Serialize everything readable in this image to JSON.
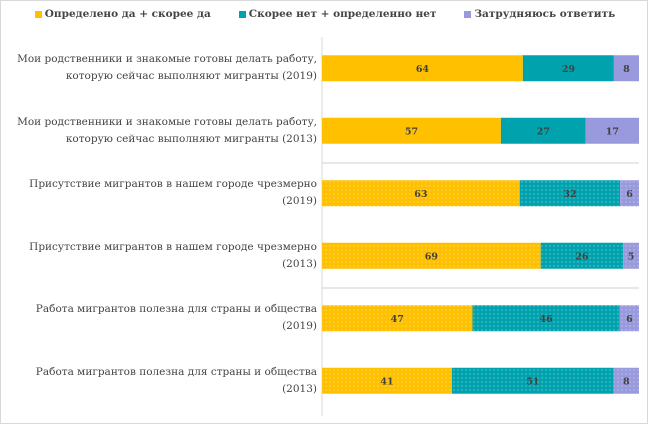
{
  "chart_data": {
    "type": "bar",
    "orientation": "horizontal",
    "stacked": true,
    "categories": [
      "Мои родственники и знакомые готовы делать работу, которую сейчас выполняют мигранты (2019)",
      "Мои родственники и знакомые готовы делать работу, которую сейчас выполняют мигранты (2013)",
      "Присутствие мигрантов в нашем городе чрезмерно (2019)",
      "Присутствие мигрантов в нашем городе чрезмерно (2013)",
      "Работа мигрантов полезна для страны и общества (2019)",
      "Работа мигрантов полезна для страны и общества (2013)"
    ],
    "series": [
      {
        "name": "Определено да + скорее да",
        "color": "#ffc000",
        "values": [
          64,
          57,
          63,
          69,
          47,
          41
        ]
      },
      {
        "name": "Скорее нет + определенно нет",
        "color": "#00a2ad",
        "values": [
          29,
          27,
          32,
          26,
          46,
          51
        ]
      },
      {
        "name": "Затрудняюсь ответить",
        "color": "#9999dd",
        "values": [
          8,
          17,
          6,
          5,
          6,
          8
        ]
      }
    ],
    "patterned_rows": [
      2,
      3,
      4,
      5
    ],
    "legend_position": "top",
    "grid": false,
    "title": "",
    "xlabel": "",
    "ylabel": ""
  }
}
